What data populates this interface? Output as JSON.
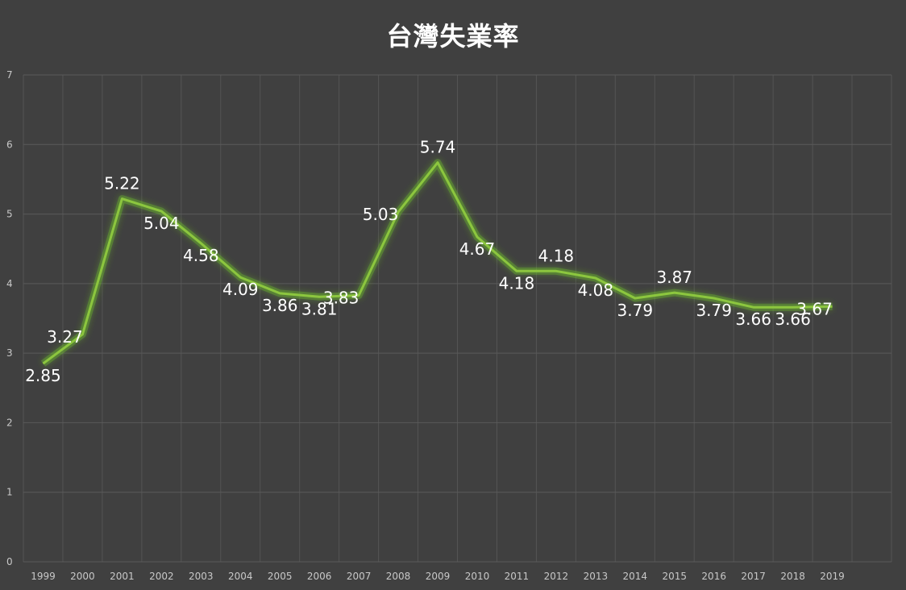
{
  "colors": {
    "background": "#404040",
    "line": "#8cc63f",
    "glow": "#6fbf2a"
  },
  "chart_data": {
    "type": "line",
    "title": "台灣失業率",
    "xlabel": "",
    "ylabel": "",
    "ylim": [
      0,
      7
    ],
    "yticks": [
      0,
      1,
      2,
      3,
      4,
      5,
      6,
      7
    ],
    "grid": true,
    "x": [
      "1999",
      "2000",
      "2001",
      "2002",
      "2003",
      "2004",
      "2005",
      "2006",
      "2007",
      "2008",
      "2009",
      "2010",
      "2011",
      "2012",
      "2013",
      "2014",
      "2015",
      "2016",
      "2017",
      "2018",
      "2019"
    ],
    "series": [
      {
        "values": [
          2.85,
          3.27,
          5.22,
          5.04,
          4.58,
          4.09,
          3.86,
          3.81,
          3.83,
          5.03,
          5.74,
          4.67,
          4.18,
          4.18,
          4.08,
          3.79,
          3.87,
          3.79,
          3.66,
          3.66,
          3.67
        ],
        "labels": [
          "2.85",
          "3.27",
          "5.22",
          "5.04",
          "4.58",
          "4.09",
          "3.86",
          "3.81",
          "3.83",
          "5.03",
          "5.74",
          "4.67",
          "4.18",
          "4.18",
          "4.08",
          "3.79",
          "3.87",
          "3.79",
          "3.66",
          "3.66",
          "3.67"
        ]
      }
    ]
  }
}
